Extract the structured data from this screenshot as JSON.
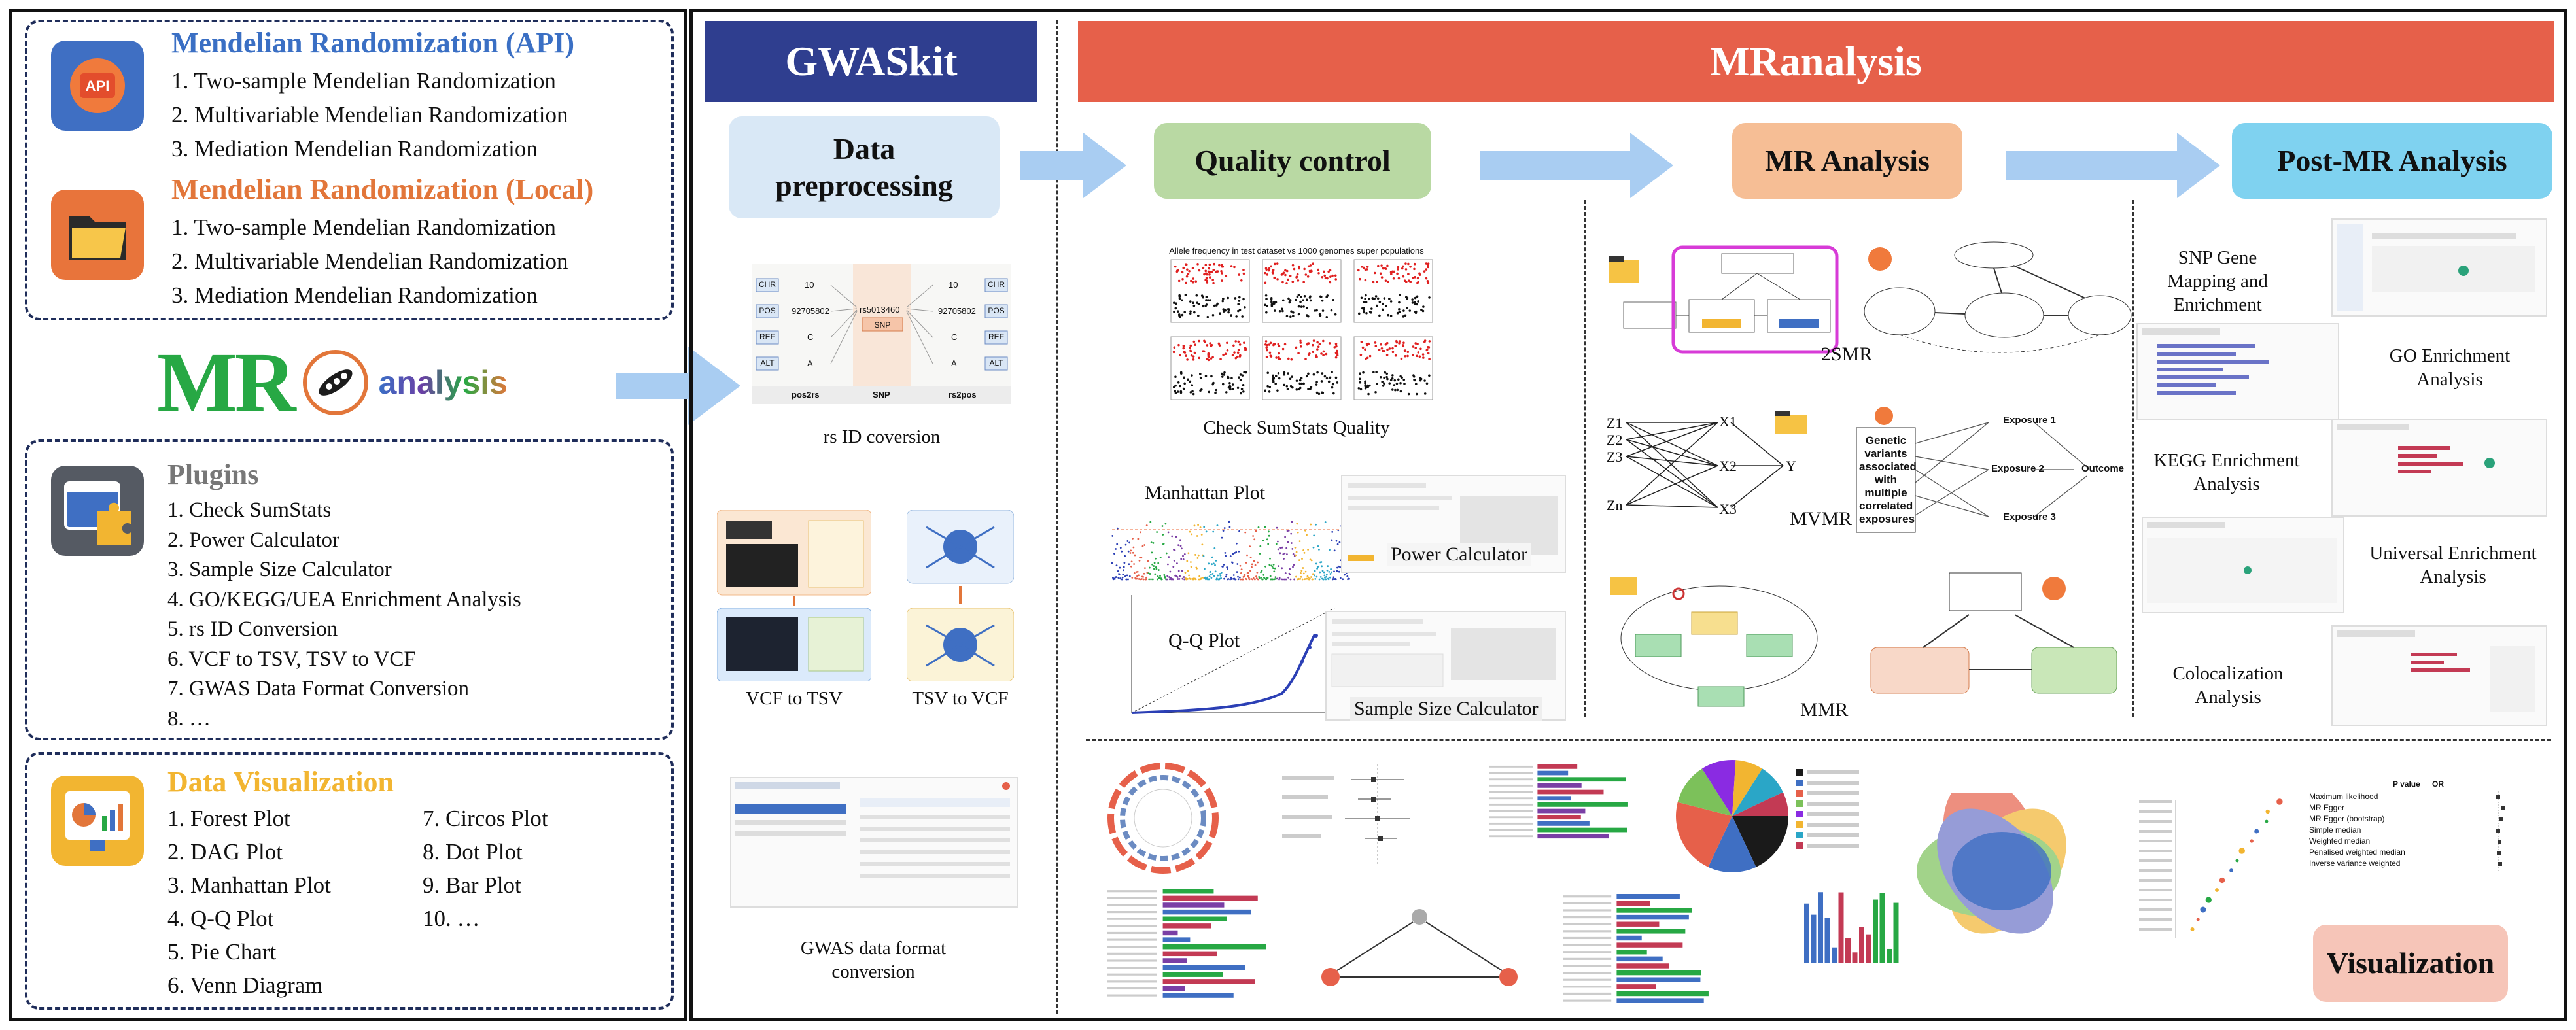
{
  "left_panel": {
    "api": {
      "title": "Mendelian Randomization (API)",
      "items": [
        "1. Two-sample Mendelian Randomization",
        "2. Multivariable Mendelian Randomization",
        "3. Mediation Mendelian Randomization"
      ],
      "icon": "api-cloud-icon"
    },
    "local": {
      "title": "Mendelian Randomization (Local)",
      "items": [
        "1. Two-sample Mendelian Randomization",
        "2. Multivariable Mendelian Randomization",
        "3. Mediation Mendelian Randomization"
      ],
      "icon": "folder-icon"
    },
    "logo": {
      "mark": "MR",
      "word": "analysis"
    },
    "plugins": {
      "title": "Plugins",
      "items": [
        "1. Check SumStats",
        "2. Power Calculator",
        "3. Sample Size Calculator",
        "4. GO/KEGG/UEA Enrichment Analysis",
        "5. rs ID Conversion",
        "6. VCF to TSV, TSV to VCF",
        "7. GWAS Data Format Conversion",
        "8. …"
      ],
      "icon": "plugin-puzzle-icon"
    },
    "visualization": {
      "title": "Data Visualization",
      "col1": [
        "1. Forest Plot",
        "2. DAG Plot",
        "3. Manhattan Plot",
        "4. Q-Q Plot",
        "5. Pie Chart",
        "6. Venn Diagram"
      ],
      "col2": [
        "7. Circos Plot",
        "8. Dot Plot",
        "9. Bar Plot",
        "10. …"
      ],
      "icon": "dashboard-icon"
    }
  },
  "gwaskit": {
    "banner": "GWASkit",
    "stage": "Data preprocessing",
    "rsid": {
      "caption": "rs ID coversion",
      "left_label": "pos2rs",
      "mid_label": "SNP",
      "right_label": "rs2pos",
      "snp_id": "rs5013460",
      "pos_value": "92705802",
      "chr_value": "10",
      "ref_value": "C",
      "alt_value": "A",
      "keys": [
        "CHR",
        "POS",
        "REF",
        "ALT"
      ]
    },
    "vcf_to_tsv": "VCF to TSV",
    "tsv_to_vcf": "TSV to VCF",
    "gwas_format": "GWAS data format conversion"
  },
  "mranalysis": {
    "banner": "MRanalysis",
    "stages": [
      "Quality control",
      "MR Analysis",
      "Post-MR Analysis"
    ],
    "qc": {
      "check_sumstats": "Check SumStats Quality",
      "plot_title": "Allele frequency in test dataset vs 1000 genomes super populations",
      "manhattan": "Manhattan Plot",
      "power": "Power Calculator",
      "qq": "Q-Q Plot",
      "sample_size": "Sample Size Calculator"
    },
    "mr": {
      "two_smr": "2SMR",
      "mvmr": "MVMR",
      "mmr": "MMR",
      "mvmr_nodes": {
        "z": [
          "Z1",
          "Z2",
          "Z3",
          "Zn"
        ],
        "x": [
          "X1",
          "X2",
          "X3"
        ],
        "y": "Y"
      },
      "exposures": [
        "Exposure 1",
        "Exposure 2",
        "Exposure 3"
      ],
      "outcome": "Outcome",
      "genetic_variants": "Genetic variants associated with multiple correlated exposures"
    },
    "post": {
      "snp_gene": "SNP Gene Mapping and Enrichment",
      "go": "GO Enrichment Analysis",
      "kegg": "KEGG Enrichment Analysis",
      "universal": "Universal Enrichment Analysis",
      "coloc": "Colocalization Analysis"
    },
    "visualization_label": "Visualization",
    "forest_headers": [
      "P value",
      "OR"
    ],
    "forest_methods": [
      "Maximum likelihood",
      "MR Egger",
      "MR Egger (bootstrap)",
      "Simple median",
      "Weighted median",
      "Penalised weighted median",
      "Inverse variance weighted"
    ]
  },
  "colors": {
    "navy": "#2f3e8f",
    "red_banner": "#e6604a",
    "arrow": "#a9cdf2",
    "stage_blue": "#d9e8f6",
    "stage_green": "#b9d9a3",
    "stage_orange": "#f6be95",
    "stage_cyan": "#7fd2f0",
    "viz_pink": "#f6c5b8"
  }
}
